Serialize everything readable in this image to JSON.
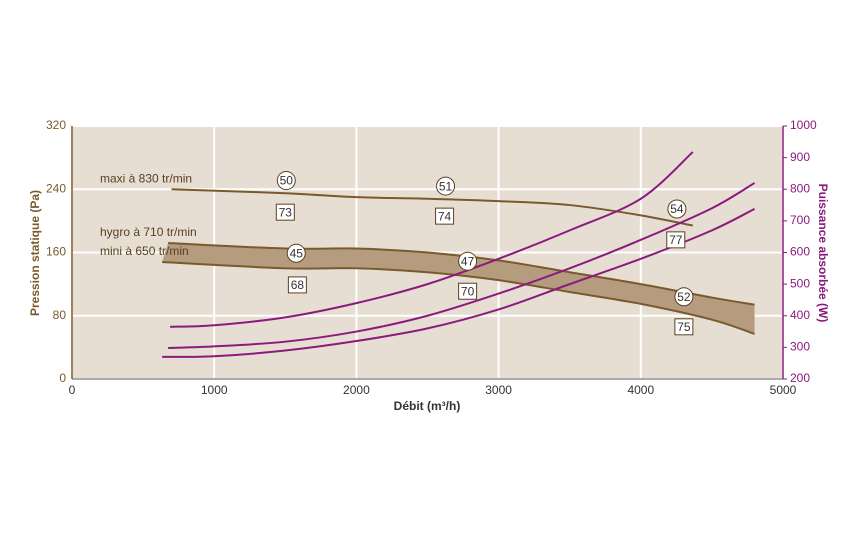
{
  "chart_data": {
    "type": "line",
    "xlabel": "Débit (m³/h)",
    "ylabel": "Pression statique (Pa)",
    "y2label": "Puissance absorbée (W)",
    "xlim": [
      0,
      5000
    ],
    "xticks": [
      0,
      1000,
      2000,
      3000,
      4000,
      5000
    ],
    "ylim": [
      0,
      320
    ],
    "yticks": [
      0,
      80,
      160,
      240,
      320
    ],
    "y2lim": [
      200,
      1000
    ],
    "y2ticks": [
      200,
      300,
      400,
      500,
      600,
      700,
      800,
      900,
      1000
    ],
    "grid": true,
    "ycolor": "#7a5a2c",
    "y2color": "#8b1a7e",
    "fill_between": [
      1,
      2
    ],
    "fill_color": "#b59c7e",
    "series": [
      {
        "name": "maxi à 830 tr/min",
        "color": "#7a5a2c",
        "axis": "y",
        "x": [
          700,
          1500,
          2000,
          2500,
          3000,
          3500,
          4000,
          4366
        ],
        "values": [
          240,
          235,
          230,
          228,
          225,
          220,
          207,
          194
        ]
      },
      {
        "name": "hygro à 710 tr/min",
        "color": "#7a5a2c",
        "axis": "y",
        "x": [
          676,
          1500,
          2000,
          2500,
          3000,
          3500,
          4000,
          4500,
          4800
        ],
        "values": [
          172,
          165,
          165,
          160,
          150,
          135,
          120,
          103,
          94
        ]
      },
      {
        "name": "mini à 650 tr/min",
        "color": "#7a5a2c",
        "axis": "y",
        "x": [
          634,
          1500,
          2000,
          2500,
          3000,
          3500,
          4000,
          4500,
          4800
        ],
        "values": [
          148,
          140,
          140,
          135,
          125,
          110,
          95,
          75,
          57
        ]
      },
      {
        "color": "#8b1a7e",
        "axis": "y2",
        "x": [
          690,
          1000,
          1500,
          2000,
          2500,
          3000,
          3500,
          4000,
          4366
        ],
        "values": [
          365,
          370,
          395,
          440,
          500,
          580,
          670,
          770,
          918
        ]
      },
      {
        "color": "#8b1a7e",
        "axis": "y2",
        "x": [
          676,
          1000,
          1500,
          2000,
          2500,
          3000,
          3500,
          4000,
          4500,
          4800
        ],
        "values": [
          298,
          303,
          318,
          350,
          400,
          470,
          550,
          640,
          740,
          820
        ]
      },
      {
        "color": "#8b1a7e",
        "axis": "y2",
        "x": [
          634,
          1000,
          1500,
          2000,
          2500,
          3000,
          3500,
          4000,
          4500,
          4800
        ],
        "values": [
          270,
          272,
          290,
          320,
          360,
          420,
          500,
          580,
          670,
          738
        ]
      }
    ],
    "annotations": [
      {
        "label": 50,
        "shape": "circle",
        "x": 1507,
        "y": 251
      },
      {
        "label": 51,
        "shape": "circle",
        "x": 2627,
        "y": 244
      },
      {
        "label": 54,
        "shape": "circle",
        "x": 4254,
        "y": 215
      },
      {
        "label": 45,
        "shape": "circle",
        "x": 1577,
        "y": 159
      },
      {
        "label": 47,
        "shape": "circle",
        "x": 2782,
        "y": 149
      },
      {
        "label": 52,
        "shape": "circle",
        "x": 4303,
        "y": 104
      },
      {
        "label": 73,
        "shape": "square",
        "x": 1500,
        "y": 211
      },
      {
        "label": 74,
        "shape": "square",
        "x": 2620,
        "y": 206
      },
      {
        "label": 77,
        "shape": "square",
        "x": 4246,
        "y": 176
      },
      {
        "label": 68,
        "shape": "square",
        "x": 1585,
        "y": 119
      },
      {
        "label": 70,
        "shape": "square",
        "x": 2782,
        "y": 111
      },
      {
        "label": 75,
        "shape": "square",
        "x": 4303,
        "y": 66
      }
    ]
  }
}
